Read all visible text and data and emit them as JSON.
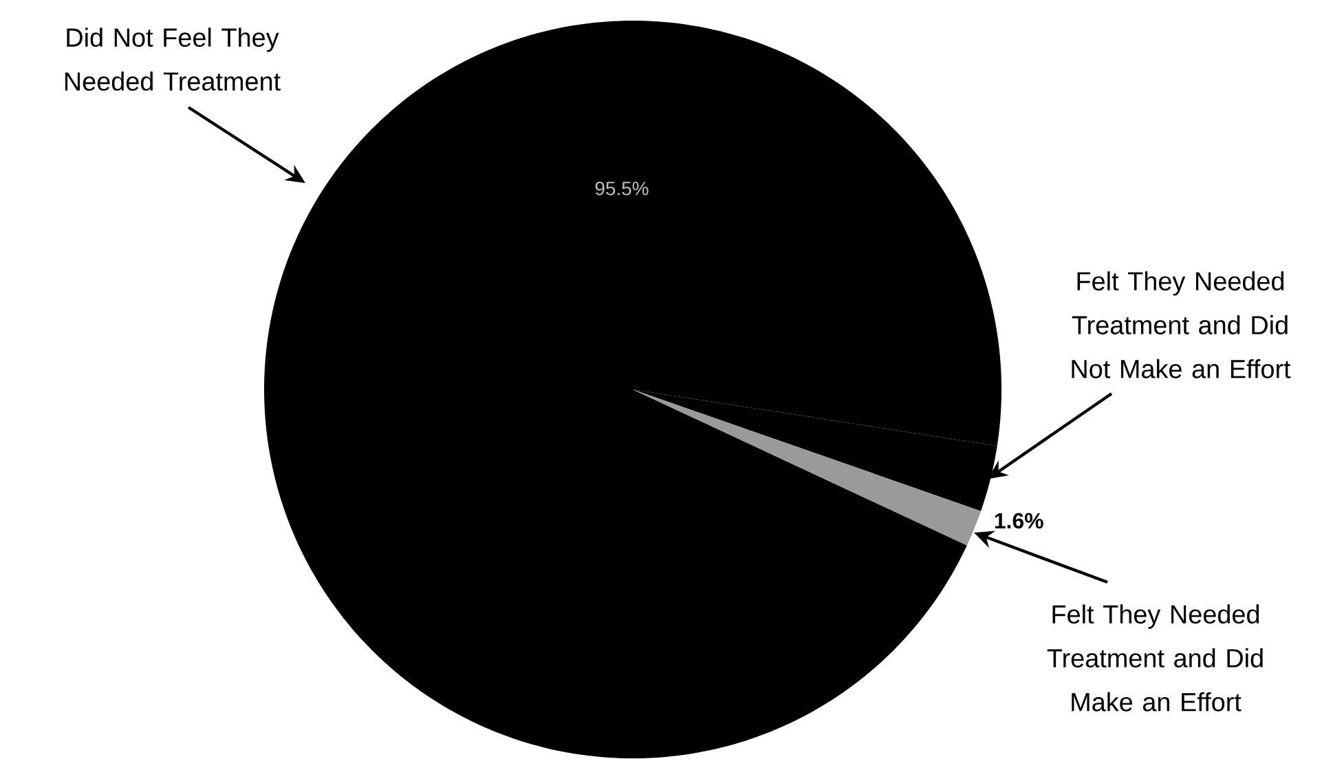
{
  "chart_data": {
    "type": "pie",
    "categories": [
      "Did Not Feel They Needed Treatment",
      "Felt They Needed Treatment and Did Not Make an Effort",
      "Felt They Needed Treatment and Did Make an Effort"
    ],
    "values": [
      95.5,
      2.9,
      1.6
    ],
    "colors": [
      "#000000",
      "#000000",
      "#9a9a9a"
    ],
    "value_labels": [
      "95.5%",
      null,
      "1.6%"
    ]
  }
}
